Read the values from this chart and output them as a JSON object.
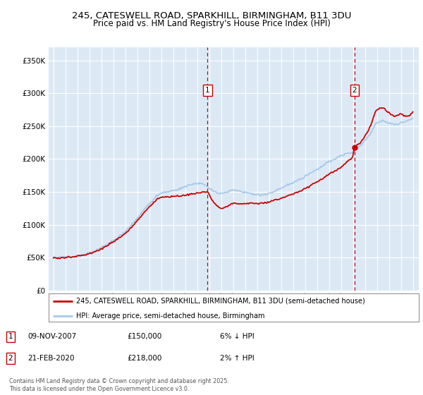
{
  "title_line1": "245, CATESWELL ROAD, SPARKHILL, BIRMINGHAM, B11 3DU",
  "title_line2": "Price paid vs. HM Land Registry's House Price Index (HPI)",
  "background_color": "#dce9f5",
  "grid_color": "#ffffff",
  "sale1_date": "09-NOV-2007",
  "sale1_price": 150000,
  "sale1_label": "1",
  "sale1_note": "6% ↓ HPI",
  "sale2_date": "21-FEB-2020",
  "sale2_price": 218000,
  "sale2_label": "2",
  "sale2_note": "2% ↑ HPI",
  "legend_line1": "245, CATESWELL ROAD, SPARKHILL, BIRMINGHAM, B11 3DU (semi-detached house)",
  "legend_line2": "HPI: Average price, semi-detached house, Birmingham",
  "footer": "Contains HM Land Registry data © Crown copyright and database right 2025.\nThis data is licensed under the Open Government Licence v3.0.",
  "sale1_x": 2007.86,
  "sale2_x": 2020.13,
  "ylim_max": 370000,
  "ylim_min": 0,
  "hpi_color": "#a8c8e8",
  "price_color": "#cc0000"
}
